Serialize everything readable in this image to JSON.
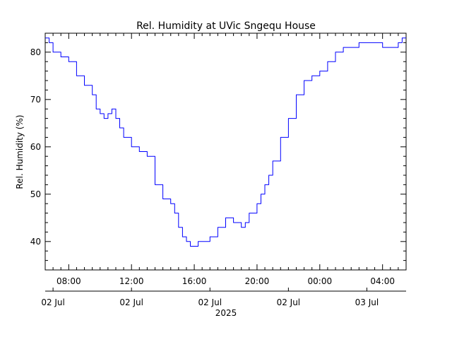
{
  "chart_data": {
    "type": "line",
    "title": "Rel. Humidity at UVic Sngequ House",
    "ylabel": "Rel. Humidity (%)",
    "xlabel": "",
    "year_label": "2025",
    "xlim": [
      "2025-07-02 06:30",
      "2025-07-03 05:30"
    ],
    "ylim": [
      34,
      84
    ],
    "grid": false,
    "line_color": "#0000ff",
    "y_major_ticks": [
      40,
      50,
      60,
      70,
      80
    ],
    "x_time_ticks": [
      {
        "t": "2025-07-02 08:00",
        "label": "08:00"
      },
      {
        "t": "2025-07-02 12:00",
        "label": "12:00"
      },
      {
        "t": "2025-07-02 16:00",
        "label": "16:00"
      },
      {
        "t": "2025-07-02 20:00",
        "label": "20:00"
      },
      {
        "t": "2025-07-03 00:00",
        "label": "00:00"
      },
      {
        "t": "2025-07-03 04:00",
        "label": "04:00"
      }
    ],
    "x_date_ticks": [
      {
        "t": "2025-07-02 07:00",
        "label": "02 Jul"
      },
      {
        "t": "2025-07-02 12:00",
        "label": "02 Jul"
      },
      {
        "t": "2025-07-02 17:00",
        "label": "02 Jul"
      },
      {
        "t": "2025-07-02 22:00",
        "label": "02 Jul"
      },
      {
        "t": "2025-07-03 03:00",
        "label": "03 Jul"
      }
    ],
    "series": [
      {
        "x": [
          "2025-07-02 06:30",
          "2025-07-02 06:45",
          "2025-07-02 07:00",
          "2025-07-02 07:30",
          "2025-07-02 08:00",
          "2025-07-02 08:30",
          "2025-07-02 09:00",
          "2025-07-02 09:30",
          "2025-07-02 09:45",
          "2025-07-02 10:00",
          "2025-07-02 10:15",
          "2025-07-02 10:30",
          "2025-07-02 10:45",
          "2025-07-02 11:00",
          "2025-07-02 11:15",
          "2025-07-02 11:30",
          "2025-07-02 12:00",
          "2025-07-02 12:30",
          "2025-07-02 13:00",
          "2025-07-02 13:30",
          "2025-07-02 14:00",
          "2025-07-02 14:30",
          "2025-07-02 14:45",
          "2025-07-02 15:00",
          "2025-07-02 15:15",
          "2025-07-02 15:30",
          "2025-07-02 15:45",
          "2025-07-02 16:00",
          "2025-07-02 16:15",
          "2025-07-02 16:30",
          "2025-07-02 16:45",
          "2025-07-02 17:00",
          "2025-07-02 17:30",
          "2025-07-02 18:00",
          "2025-07-02 18:30",
          "2025-07-02 18:45",
          "2025-07-02 19:00",
          "2025-07-02 19:15",
          "2025-07-02 19:30",
          "2025-07-02 20:00",
          "2025-07-02 20:15",
          "2025-07-02 20:30",
          "2025-07-02 20:45",
          "2025-07-02 21:00",
          "2025-07-02 21:30",
          "2025-07-02 22:00",
          "2025-07-02 22:30",
          "2025-07-02 23:00",
          "2025-07-02 23:30",
          "2025-07-03 00:00",
          "2025-07-03 00:30",
          "2025-07-03 01:00",
          "2025-07-03 01:30",
          "2025-07-03 02:00",
          "2025-07-03 02:30",
          "2025-07-03 03:00",
          "2025-07-03 03:30",
          "2025-07-03 04:00",
          "2025-07-03 04:15",
          "2025-07-03 04:30",
          "2025-07-03 05:00",
          "2025-07-03 05:15",
          "2025-07-03 05:30"
        ],
        "y": [
          83,
          82,
          80,
          79,
          78,
          75,
          73,
          71,
          68,
          67,
          66,
          67,
          68,
          66,
          64,
          62,
          60,
          59,
          58,
          52,
          49,
          48,
          46,
          43,
          41,
          40,
          39,
          39,
          40,
          40,
          40,
          41,
          43,
          45,
          44,
          44,
          43,
          44,
          46,
          48,
          50,
          52,
          54,
          57,
          62,
          66,
          71,
          74,
          75,
          76,
          78,
          80,
          81,
          81,
          82,
          82,
          82,
          81,
          81,
          81,
          82,
          83,
          83
        ]
      }
    ]
  }
}
